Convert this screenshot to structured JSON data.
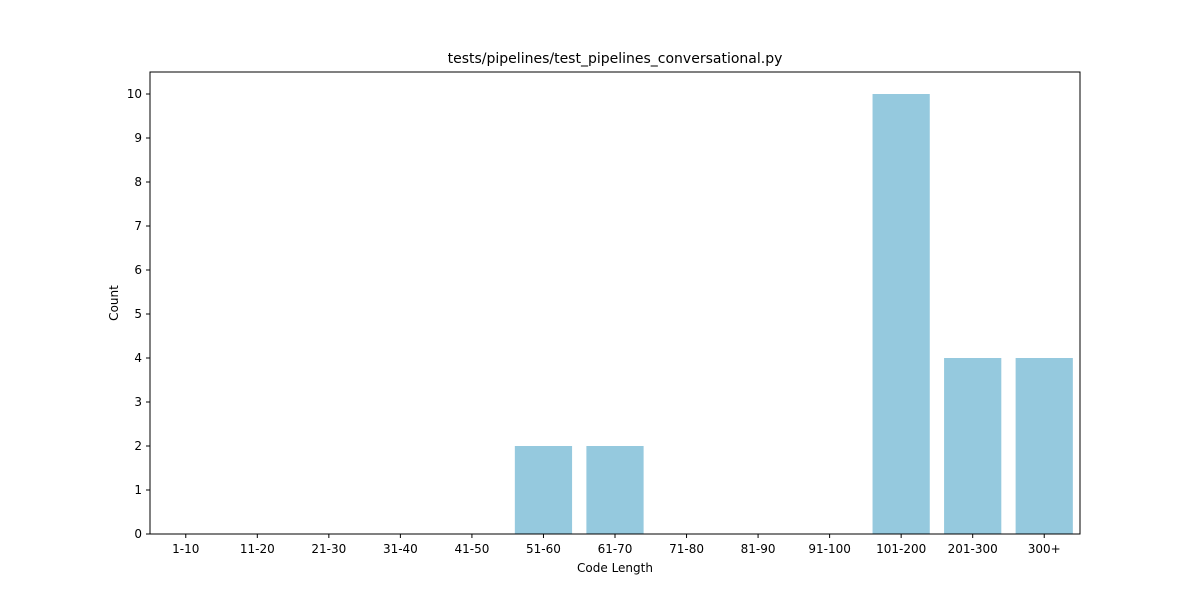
{
  "chart_data": {
    "type": "bar",
    "title": "tests/pipelines/test_pipelines_conversational.py",
    "xlabel": "Code Length",
    "ylabel": "Count",
    "categories": [
      "1-10",
      "11-20",
      "21-30",
      "31-40",
      "41-50",
      "51-60",
      "61-70",
      "71-80",
      "81-90",
      "91-100",
      "101-200",
      "201-300",
      "300+"
    ],
    "values": [
      0,
      0,
      0,
      0,
      0,
      2,
      2,
      0,
      0,
      0,
      10,
      4,
      4
    ],
    "ylim": [
      0,
      10.5
    ],
    "yticks": [
      0,
      1,
      2,
      3,
      4,
      5,
      6,
      7,
      8,
      9,
      10
    ],
    "bar_color": "#95c9de",
    "grid": false,
    "legend": "none"
  }
}
